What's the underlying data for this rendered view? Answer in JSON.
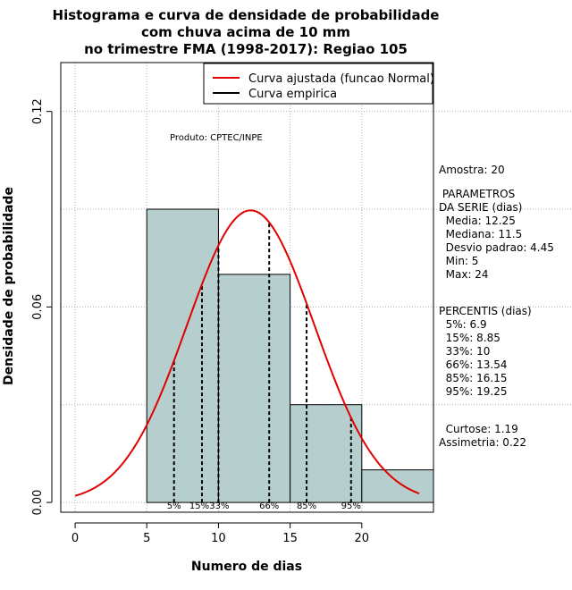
{
  "chart_data": {
    "type": "histogram",
    "title_lines": [
      "Histograma e curva de densidade de probabilidade",
      "com chuva acima de 10 mm",
      "no trimestre FMA (1998-2017): Regiao 105"
    ],
    "xlabel": "Numero de dias",
    "ylabel": "Densidade de probabilidade",
    "xlim": [
      -1,
      25
    ],
    "ylim": [
      -0.003,
      0.135
    ],
    "x_ticks": [
      0,
      5,
      10,
      15,
      20
    ],
    "y_ticks": [
      0.0,
      0.06,
      0.12
    ],
    "y_tick_labels": [
      "0.00",
      "0.06",
      "0.12"
    ],
    "bins": [
      {
        "start": 5,
        "end": 10,
        "density": 0.09
      },
      {
        "start": 10,
        "end": 15,
        "density": 0.07
      },
      {
        "start": 15,
        "end": 20,
        "density": 0.03
      },
      {
        "start": 20,
        "end": 25,
        "density": 0.01
      }
    ],
    "normal_fit": {
      "mean": 12.25,
      "sd": 4.45,
      "x_from": 0,
      "x_to": 24
    },
    "percentiles": [
      {
        "label": "5%",
        "x": 6.9
      },
      {
        "label": "15%",
        "x": 8.85
      },
      {
        "label": "33%",
        "x": 10
      },
      {
        "label": "66%",
        "x": 13.54
      },
      {
        "label": "85%",
        "x": 16.15
      },
      {
        "label": "95%",
        "x": 19.25
      }
    ],
    "legend": [
      {
        "label": "Curva ajustada (funcao Normal)",
        "color": "#e00000"
      },
      {
        "label": "Curva empirica",
        "color": "#000000"
      }
    ],
    "grid": true,
    "colors": {
      "bars": "#b7cece",
      "curve": "#e00000",
      "grid": "#b0b0b0"
    }
  },
  "annotations": {
    "product": "Produto: CPTEC/INPE",
    "amostra": "Amostra: 20",
    "stats_block": [
      " PARAMETROS",
      "DA SERIE (dias)",
      "  Media: 12.25",
      "  Mediana: 11.5",
      "  Desvio padrao: 4.45",
      "  Min: 5",
      "  Max: 24"
    ],
    "percentis_block": [
      "PERCENTIS (dias)",
      "  5%: 6.9",
      "  15%: 8.85",
      "  33%: 10",
      "  66%: 13.54",
      "  85%: 16.15",
      "  95%: 19.25"
    ],
    "curtose": "  Curtose: 1.19",
    "assimetria": "Assimetria: 0.22"
  }
}
